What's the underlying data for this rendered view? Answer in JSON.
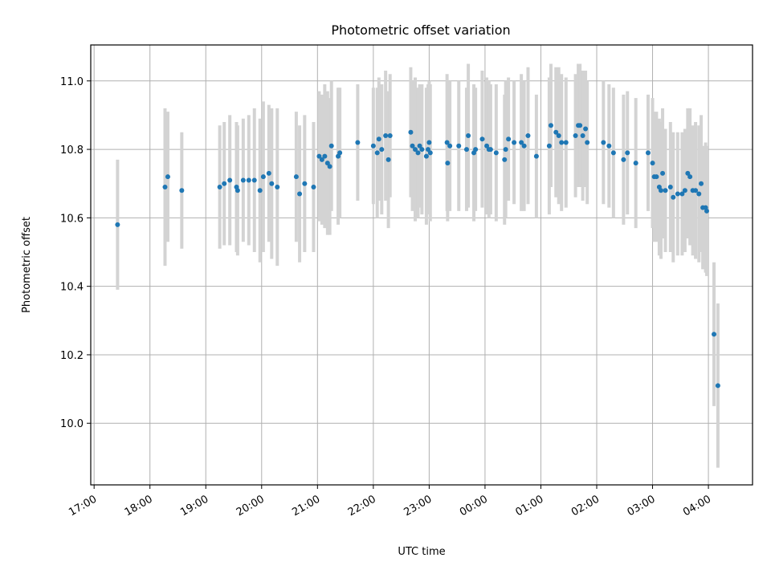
{
  "chart_data": {
    "type": "scatter",
    "title": "Photometric offset variation",
    "xlabel": "UTC time",
    "ylabel": "Photometric offset",
    "x_axis": "time (hours; values after midnight are > 24)",
    "x_ticks": [
      "17:00",
      "18:00",
      "19:00",
      "20:00",
      "21:00",
      "22:00",
      "23:00",
      "00:00",
      "01:00",
      "02:00",
      "03:00",
      "04:00"
    ],
    "y_ticks": [
      "10.0",
      "10.2",
      "10.4",
      "10.6",
      "10.8",
      "11.0"
    ],
    "xlim": [
      16.94,
      28.79
    ],
    "ylim": [
      9.82,
      11.105
    ],
    "grid": true,
    "colors": {
      "point": "#1f77b4",
      "errorbar": "#d3d3d3",
      "grid": "#b0b0b0"
    },
    "series": [
      {
        "x": [
          17.42,
          18.27,
          18.32,
          18.57,
          19.25,
          19.33,
          19.43,
          19.55,
          19.57,
          19.67,
          19.77,
          19.87,
          19.97,
          20.03,
          20.13,
          20.18,
          20.28,
          20.62,
          20.68,
          20.77,
          20.93,
          21.03,
          21.08,
          21.13,
          21.18,
          21.22,
          21.25,
          21.37,
          21.4,
          21.72,
          22.0,
          22.07,
          22.1,
          22.15,
          22.22,
          22.27,
          22.3,
          22.67,
          22.7,
          22.75,
          22.8,
          22.83,
          22.87,
          22.95,
          22.98,
          23.0,
          23.02,
          23.32,
          23.33,
          23.37,
          23.53,
          23.67,
          23.7,
          23.8,
          23.83,
          23.95,
          24.03,
          24.07,
          24.1,
          24.2,
          24.35,
          24.37,
          24.42,
          24.52,
          24.65,
          24.7,
          24.77,
          24.92,
          25.15,
          25.18,
          25.27,
          25.32,
          25.37,
          25.45,
          25.62,
          25.67,
          25.7,
          25.75,
          25.8,
          25.83,
          26.12,
          26.22,
          26.3,
          26.48,
          26.55,
          26.7,
          26.92,
          27.0,
          27.03,
          27.07,
          27.12,
          27.15,
          27.18,
          27.23,
          27.32,
          27.37,
          27.45,
          27.53,
          27.58,
          27.63,
          27.67,
          27.72,
          27.77,
          27.83,
          27.87,
          27.9,
          27.95,
          27.97,
          28.1,
          28.17
        ],
        "y": [
          10.58,
          10.69,
          10.72,
          10.68,
          10.69,
          10.7,
          10.71,
          10.69,
          10.68,
          10.71,
          10.71,
          10.71,
          10.68,
          10.72,
          10.73,
          10.7,
          10.69,
          10.72,
          10.67,
          10.7,
          10.69,
          10.78,
          10.77,
          10.78,
          10.76,
          10.75,
          10.81,
          10.78,
          10.79,
          10.82,
          10.81,
          10.79,
          10.83,
          10.8,
          10.84,
          10.77,
          10.84,
          10.85,
          10.81,
          10.8,
          10.79,
          10.81,
          10.8,
          10.78,
          10.8,
          10.82,
          10.79,
          10.82,
          10.76,
          10.81,
          10.81,
          10.8,
          10.84,
          10.79,
          10.8,
          10.83,
          10.81,
          10.8,
          10.8,
          10.79,
          10.77,
          10.8,
          10.83,
          10.82,
          10.82,
          10.81,
          10.84,
          10.78,
          10.81,
          10.87,
          10.85,
          10.84,
          10.82,
          10.82,
          10.84,
          10.87,
          10.87,
          10.84,
          10.86,
          10.82,
          10.82,
          10.81,
          10.79,
          10.77,
          10.79,
          10.76,
          10.79,
          10.76,
          10.72,
          10.72,
          10.69,
          10.68,
          10.73,
          10.68,
          10.69,
          10.66,
          10.67,
          10.67,
          10.68,
          10.73,
          10.72,
          10.68,
          10.68,
          10.67,
          10.7,
          10.63,
          10.63,
          10.62,
          10.26,
          10.11
        ],
        "err": [
          0.19,
          0.23,
          0.19,
          0.17,
          0.18,
          0.18,
          0.19,
          0.19,
          0.19,
          0.18,
          0.19,
          0.21,
          0.21,
          0.22,
          0.2,
          0.22,
          0.23,
          0.19,
          0.2,
          0.2,
          0.19,
          0.19,
          0.19,
          0.21,
          0.21,
          0.2,
          0.19,
          0.2,
          0.19,
          0.17,
          0.17,
          0.19,
          0.18,
          0.19,
          0.19,
          0.2,
          0.18,
          0.19,
          0.19,
          0.21,
          0.19,
          0.18,
          0.19,
          0.2,
          0.19,
          0.18,
          0.2,
          0.2,
          0.17,
          0.19,
          0.19,
          0.18,
          0.21,
          0.2,
          0.18,
          0.2,
          0.2,
          0.2,
          0.19,
          0.2,
          0.19,
          0.2,
          0.18,
          0.18,
          0.2,
          0.19,
          0.2,
          0.18,
          0.2,
          0.18,
          0.19,
          0.2,
          0.2,
          0.19,
          0.18,
          0.18,
          0.18,
          0.19,
          0.17,
          0.18,
          0.18,
          0.18,
          0.19,
          0.19,
          0.18,
          0.19,
          0.17,
          0.19,
          0.19,
          0.19,
          0.2,
          0.2,
          0.19,
          0.18,
          0.19,
          0.19,
          0.18,
          0.18,
          0.18,
          0.19,
          0.2,
          0.19,
          0.2,
          0.2,
          0.2,
          0.18,
          0.19,
          0.19,
          0.21,
          0.24
        ]
      }
    ]
  }
}
